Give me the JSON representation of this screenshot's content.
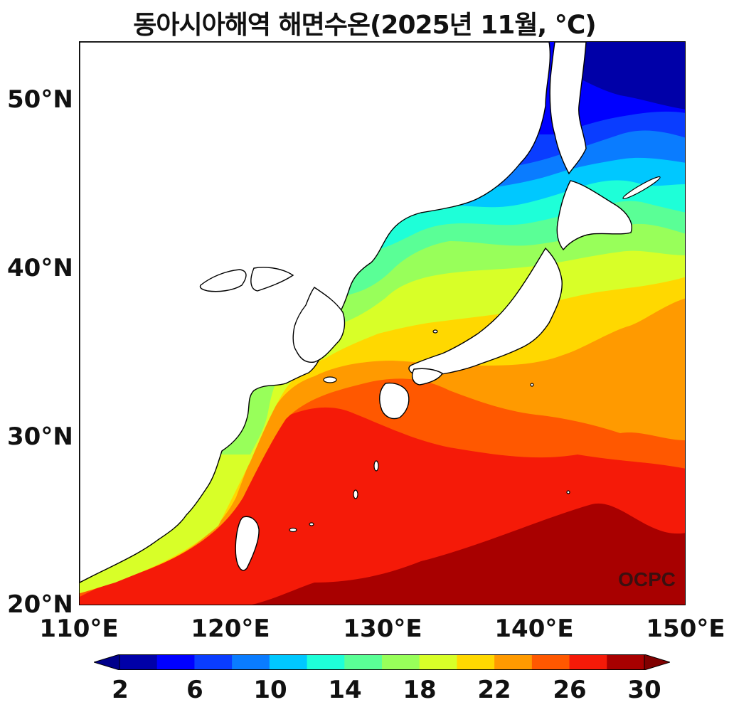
{
  "title": "동아시아해역 해면수온(2025년 11월, ℃)",
  "credit": "OCPC",
  "axes": {
    "lat_labels": [
      "50°N",
      "40°N",
      "30°N",
      "20°N"
    ],
    "lon_labels": [
      "110°E",
      "120°E",
      "130°E",
      "140°E",
      "150°E"
    ],
    "lat_range": [
      20,
      53.5
    ],
    "lon_range": [
      110,
      150
    ]
  },
  "colorbar": {
    "labels": [
      "2",
      "6",
      "10",
      "14",
      "18",
      "22",
      "26",
      "30"
    ],
    "levels": [
      2,
      4,
      6,
      8,
      10,
      12,
      14,
      16,
      18,
      20,
      22,
      24,
      26,
      28,
      30
    ],
    "colors": [
      "#0000a8",
      "#0000ff",
      "#0a3dff",
      "#0a7cff",
      "#00c8ff",
      "#1effd8",
      "#5aff96",
      "#98ff5a",
      "#d8ff28",
      "#ffd800",
      "#ff9a00",
      "#ff5800",
      "#f51a08",
      "#a80000"
    ],
    "under_color": "#00008b",
    "over_color": "#800000",
    "extend": "both"
  },
  "land_color": "#ffffff",
  "coast_color": "#000000"
}
